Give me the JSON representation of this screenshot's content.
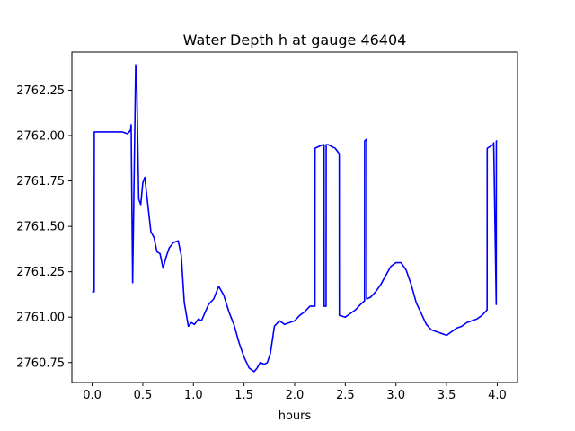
{
  "chart_data": {
    "type": "line",
    "title": "Water Depth h at gauge 46404",
    "xlabel": "hours",
    "ylabel": "",
    "xlim": [
      -0.2,
      4.2
    ],
    "ylim": [
      2760.64,
      2762.46
    ],
    "xticks": [
      0.0,
      0.5,
      1.0,
      1.5,
      2.0,
      2.5,
      3.0,
      3.5,
      4.0
    ],
    "xtick_labels": [
      "0.0",
      "0.5",
      "1.0",
      "1.5",
      "2.0",
      "2.5",
      "3.0",
      "3.5",
      "4.0"
    ],
    "yticks": [
      2760.75,
      2761.0,
      2761.25,
      2761.5,
      2761.75,
      2762.0,
      2762.25
    ],
    "ytick_labels": [
      "2760.75",
      "2761.00",
      "2761.25",
      "2761.50",
      "2761.75",
      "2762.00",
      "2762.25"
    ],
    "grid": false,
    "series": [
      {
        "name": "",
        "color": "#0000ff",
        "x": [
          0.0,
          0.02,
          0.021,
          0.2,
          0.3,
          0.35,
          0.38,
          0.385,
          0.4,
          0.43,
          0.44,
          0.46,
          0.48,
          0.5,
          0.52,
          0.55,
          0.58,
          0.61,
          0.64,
          0.67,
          0.7,
          0.73,
          0.76,
          0.8,
          0.85,
          0.88,
          0.91,
          0.95,
          0.98,
          1.01,
          1.05,
          1.08,
          1.11,
          1.15,
          1.2,
          1.25,
          1.3,
          1.35,
          1.4,
          1.45,
          1.5,
          1.55,
          1.6,
          1.63,
          1.66,
          1.7,
          1.73,
          1.76,
          1.8,
          1.85,
          1.9,
          1.95,
          2.0,
          2.05,
          2.1,
          2.15,
          2.2,
          2.201,
          2.28,
          2.29,
          2.291,
          2.31,
          2.311,
          2.33,
          2.4,
          2.44,
          2.441,
          2.5,
          2.55,
          2.6,
          2.65,
          2.69,
          2.691,
          2.71,
          2.711,
          2.75,
          2.8,
          2.85,
          2.9,
          2.95,
          3.0,
          3.05,
          3.1,
          3.15,
          3.2,
          3.25,
          3.3,
          3.35,
          3.4,
          3.45,
          3.5,
          3.55,
          3.6,
          3.65,
          3.7,
          3.75,
          3.8,
          3.85,
          3.9,
          3.901,
          3.96,
          3.965,
          3.99,
          3.991,
          4.0
        ],
        "y": [
          2761.14,
          2761.14,
          2762.02,
          2762.02,
          2762.02,
          2762.01,
          2762.03,
          2762.06,
          2761.19,
          2762.39,
          2762.3,
          2761.65,
          2761.62,
          2761.74,
          2761.77,
          2761.62,
          2761.47,
          2761.44,
          2761.36,
          2761.35,
          2761.27,
          2761.33,
          2761.38,
          2761.41,
          2761.42,
          2761.34,
          2761.08,
          2760.95,
          2760.97,
          2760.96,
          2760.99,
          2760.98,
          2761.02,
          2761.07,
          2761.1,
          2761.17,
          2761.12,
          2761.03,
          2760.96,
          2760.86,
          2760.78,
          2760.72,
          2760.7,
          2760.72,
          2760.75,
          2760.74,
          2760.75,
          2760.8,
          2760.95,
          2760.98,
          2760.96,
          2760.97,
          2760.98,
          2761.01,
          2761.03,
          2761.06,
          2761.06,
          2761.93,
          2761.95,
          2761.95,
          2761.06,
          2761.06,
          2761.95,
          2761.95,
          2761.93,
          2761.9,
          2761.01,
          2761.0,
          2761.02,
          2761.04,
          2761.07,
          2761.09,
          2761.97,
          2761.98,
          2761.1,
          2761.11,
          2761.14,
          2761.18,
          2761.23,
          2761.28,
          2761.3,
          2761.3,
          2761.26,
          2761.18,
          2761.08,
          2761.02,
          2760.96,
          2760.93,
          2760.92,
          2760.91,
          2760.9,
          2760.92,
          2760.94,
          2760.95,
          2760.97,
          2760.98,
          2760.99,
          2761.01,
          2761.04,
          2761.93,
          2761.95,
          2761.96,
          2761.07,
          2761.97,
          2761.97
        ]
      }
    ]
  }
}
